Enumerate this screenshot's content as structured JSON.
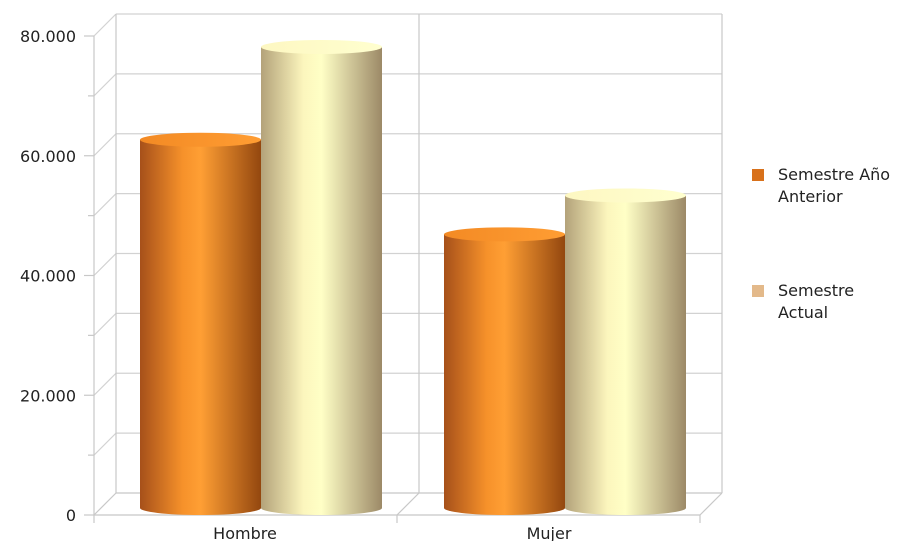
{
  "chart_data": {
    "type": "bar",
    "categories": [
      "Hombre",
      "Mujer"
    ],
    "series": [
      {
        "name": "Semestre Año Anterior",
        "legend_lines": [
          "Semestre Año",
          "Anterior"
        ],
        "values": [
          61500,
          45700
        ],
        "color": "#e07a1f"
      },
      {
        "name": "Semestre Actual",
        "legend_lines": [
          "Semestre",
          "Actual"
        ],
        "values": [
          77000,
          52200
        ],
        "color": "#e6c48c"
      }
    ],
    "y_ticks": [
      "0",
      "20.000",
      "40.000",
      "60.000",
      "80.000"
    ],
    "ylim": [
      0,
      80000
    ],
    "grid": true,
    "legend_position": "right",
    "style": "3d-cylinder"
  }
}
